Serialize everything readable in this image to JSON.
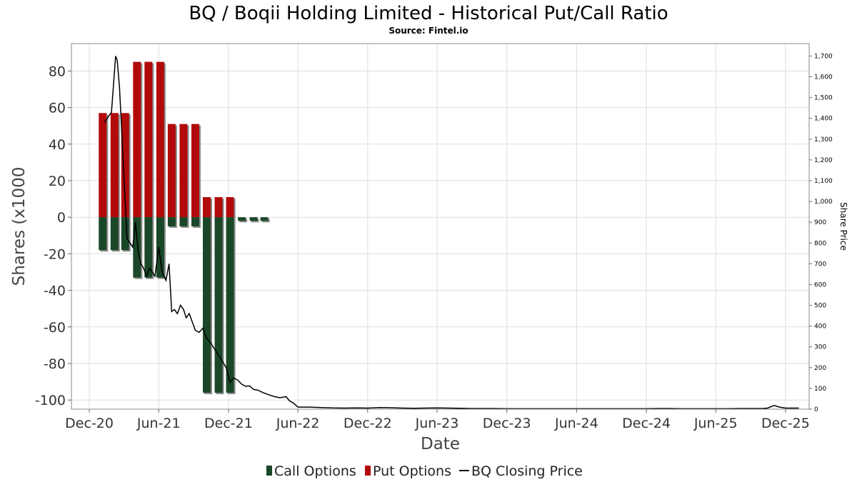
{
  "title": "BQ / Boqii Holding Limited - Historical Put/Call Ratio",
  "subtitle": "Source: Fintel.io",
  "chart_data": {
    "type": "bar",
    "xlabel": "Date",
    "ylabel": "Shares (x1000",
    "y2label": "Share Price",
    "ylim": [
      -105,
      95
    ],
    "y2lim": [
      0,
      1760
    ],
    "yticks": [
      80,
      60,
      40,
      20,
      0,
      -20,
      -40,
      -60,
      -80,
      -100
    ],
    "y2ticks": [
      0,
      100,
      200,
      300,
      400,
      500,
      600,
      700,
      800,
      900,
      1000,
      1100,
      1200,
      1300,
      1400,
      1500,
      1600,
      1700
    ],
    "y2tick_labels": [
      "0",
      "100",
      "200",
      "300",
      "400",
      "500",
      "600",
      "700",
      "800",
      "900",
      "1,000",
      "1,100",
      "1,200",
      "1,300",
      "1,400",
      "1,500",
      "1,600",
      "1,700"
    ],
    "xticks": [
      "2020-12-01",
      "2021-06-01",
      "2021-12-01",
      "2022-06-01",
      "2022-12-01",
      "2023-06-01",
      "2023-12-01",
      "2024-06-01",
      "2024-12-01",
      "2025-06-01",
      "2025-12-01"
    ],
    "xtick_labels": [
      "Dec-20",
      "Jun-21",
      "Dec-21",
      "Jun-22",
      "Dec-22",
      "Jun-23",
      "Dec-23",
      "Jun-24",
      "Dec-24",
      "Jun-25",
      "Dec-25"
    ],
    "xlim": [
      "2020-10-15",
      "2026-02-01"
    ],
    "grid": true,
    "legend_position": "bottom-center",
    "colors": {
      "call": "#1a4728",
      "put": "#b20a0a",
      "price": "#000000",
      "shadow": "#8a8a8a",
      "grid": "#dddddd"
    },
    "bar_dates": [
      "2021-01-05",
      "2021-02-05",
      "2021-03-05",
      "2021-04-05",
      "2021-05-05",
      "2021-06-05",
      "2021-07-05",
      "2021-08-05",
      "2021-09-05",
      "2021-10-05",
      "2021-11-05",
      "2021-12-05",
      "2022-01-05",
      "2022-02-05",
      "2022-03-05"
    ],
    "series": [
      {
        "name": "Call Options",
        "kind": "bar",
        "values": [
          -18,
          -18,
          -18,
          -33,
          -33,
          -33,
          -5,
          -5,
          -5,
          -96,
          -96,
          -96,
          -2,
          -2,
          -2
        ]
      },
      {
        "name": "Put Options",
        "kind": "bar",
        "values": [
          57,
          57,
          57,
          85,
          85,
          85,
          51,
          51,
          51,
          11,
          11,
          11,
          0,
          0,
          0
        ]
      },
      {
        "name": "BQ Closing Price",
        "kind": "line",
        "axis": "right",
        "x": [
          "2021-01-10",
          "2021-01-28",
          "2021-02-08",
          "2021-02-12",
          "2021-02-18",
          "2021-02-25",
          "2021-03-05",
          "2021-03-10",
          "2021-03-18",
          "2021-03-25",
          "2021-04-01",
          "2021-04-08",
          "2021-04-15",
          "2021-04-22",
          "2021-04-30",
          "2021-05-08",
          "2021-05-15",
          "2021-05-22",
          "2021-06-01",
          "2021-06-10",
          "2021-06-20",
          "2021-06-28",
          "2021-07-05",
          "2021-07-12",
          "2021-07-20",
          "2021-07-28",
          "2021-08-05",
          "2021-08-12",
          "2021-08-20",
          "2021-08-28",
          "2021-09-05",
          "2021-09-15",
          "2021-09-25",
          "2021-10-05",
          "2021-10-15",
          "2021-10-25",
          "2021-11-05",
          "2021-11-15",
          "2021-11-25",
          "2021-12-05",
          "2021-12-15",
          "2021-12-25",
          "2022-01-05",
          "2022-01-15",
          "2022-01-25",
          "2022-02-05",
          "2022-02-15",
          "2022-03-01",
          "2022-03-15",
          "2022-04-01",
          "2022-04-15",
          "2022-05-01",
          "2022-05-10",
          "2022-05-20",
          "2022-06-01",
          "2022-07-01",
          "2022-08-01",
          "2022-09-01",
          "2022-10-01",
          "2022-11-01",
          "2022-12-01",
          "2023-01-01",
          "2023-02-01",
          "2023-03-01",
          "2023-04-01",
          "2023-05-01",
          "2023-06-01",
          "2023-07-01",
          "2023-08-01",
          "2023-09-01",
          "2023-10-01",
          "2023-11-01",
          "2023-12-01",
          "2024-02-01",
          "2024-04-01",
          "2024-06-01",
          "2024-08-01",
          "2024-10-01",
          "2024-12-01",
          "2025-01-01",
          "2025-02-01",
          "2025-03-01",
          "2025-04-01",
          "2025-05-01",
          "2025-06-01",
          "2025-07-01",
          "2025-08-01",
          "2025-09-01",
          "2025-10-01",
          "2025-10-15",
          "2025-11-01",
          "2025-11-15",
          "2025-12-01",
          "2025-12-20",
          "2026-01-05"
        ],
        "values": [
          1380,
          1430,
          1700,
          1680,
          1550,
          1300,
          1000,
          820,
          800,
          780,
          900,
          760,
          700,
          680,
          640,
          680,
          660,
          640,
          780,
          660,
          620,
          700,
          470,
          480,
          460,
          500,
          480,
          440,
          460,
          420,
          380,
          370,
          390,
          340,
          320,
          290,
          260,
          230,
          200,
          130,
          150,
          140,
          120,
          110,
          112,
          95,
          92,
          80,
          70,
          60,
          55,
          60,
          40,
          30,
          10,
          10,
          8,
          6,
          5,
          6,
          5,
          8,
          7,
          5,
          4,
          5,
          6,
          5,
          4,
          3,
          3,
          3,
          2,
          2,
          2,
          2,
          2,
          2,
          2,
          3,
          3,
          2,
          2,
          2,
          2,
          2,
          3,
          3,
          3,
          5,
          18,
          10,
          5,
          5,
          5
        ]
      }
    ]
  }
}
